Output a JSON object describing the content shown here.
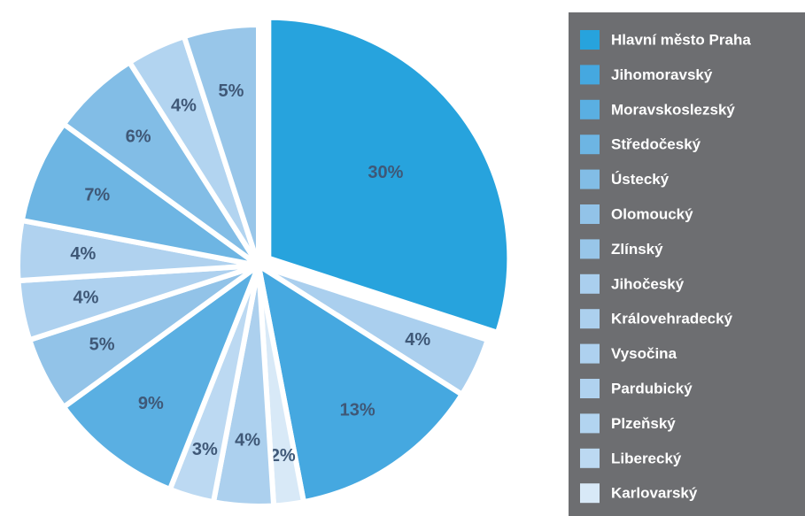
{
  "chart_data": {
    "type": "pie",
    "categories": [
      "Hlavní město Praha",
      "Jihočeský",
      "Jihomoravský",
      "Karlovarský",
      "Královehradecký",
      "Liberecký",
      "Moravskoslezský",
      "Olomoucký",
      "Vysočina",
      "Pardubický",
      "Středočeský",
      "Ústecký",
      "Plzeňský",
      "Zlínský"
    ],
    "values": [
      30,
      4,
      13,
      2,
      4,
      3,
      9,
      5,
      4,
      4,
      7,
      6,
      4,
      5
    ],
    "value_labels": [
      "30%",
      "4%",
      "13%",
      "2%",
      "4%",
      "3%",
      "9%",
      "5%",
      "4%",
      "4%",
      "7%",
      "6%",
      "4%",
      "5%"
    ],
    "colors": [
      "#27a3dd",
      "#aacfee",
      "#45a8e0",
      "#d8e9f7",
      "#acd0ee",
      "#bcd9f2",
      "#5aafe2",
      "#92c3e8",
      "#aed1ef",
      "#b0d2ef",
      "#6db5e3",
      "#82bde6",
      "#b2d4f0",
      "#98c6e9"
    ],
    "legend": "right"
  }
}
